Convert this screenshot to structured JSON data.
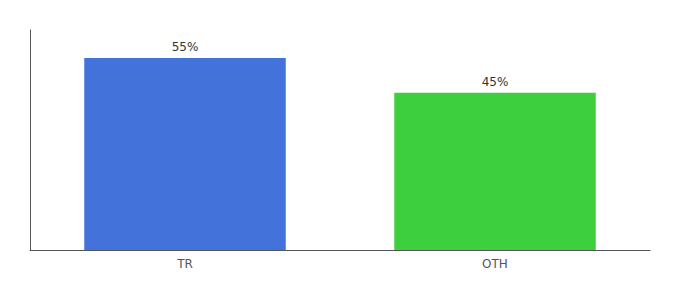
{
  "chart_data": {
    "type": "bar",
    "categories": [
      "TR",
      "OTH"
    ],
    "values": [
      55,
      45
    ],
    "value_labels": [
      "55%",
      "45%"
    ],
    "colors": [
      "#4472db",
      "#3ecf3e"
    ],
    "ylim": [
      0,
      63
    ],
    "data_labels": true,
    "tick_labels": "x",
    "grid": false
  }
}
